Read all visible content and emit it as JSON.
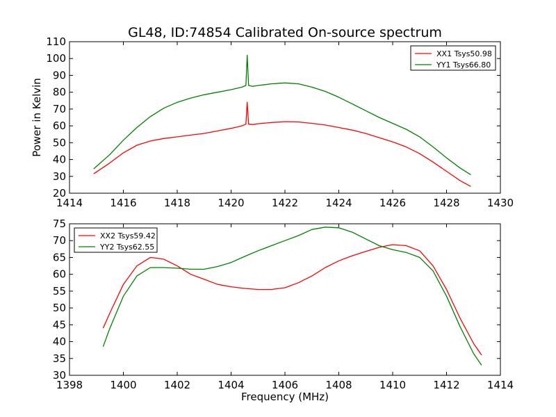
{
  "chart_data": [
    {
      "type": "line",
      "title": "GL48, ID:74854 Calibrated On-source spectrum",
      "xlabel": "",
      "ylabel": "Power in Kelvin",
      "xlim": [
        1414,
        1430
      ],
      "ylim": [
        20,
        110
      ],
      "xticks": [
        1414,
        1416,
        1418,
        1420,
        1422,
        1424,
        1426,
        1428,
        1430
      ],
      "yticks": [
        20,
        30,
        40,
        50,
        60,
        70,
        80,
        90,
        100,
        110
      ],
      "legend_position": "top-right",
      "grid": false,
      "series": [
        {
          "name": "XX1 Tsys50.98",
          "color": "#ff0000",
          "x": [
            1414.9,
            1415.5,
            1416.0,
            1416.5,
            1417.0,
            1417.5,
            1418.0,
            1418.5,
            1419.0,
            1419.5,
            1420.0,
            1420.4,
            1420.55,
            1420.6,
            1420.65,
            1420.8,
            1421.0,
            1421.5,
            1422.0,
            1422.5,
            1423.0,
            1423.5,
            1424.0,
            1424.5,
            1425.0,
            1425.5,
            1426.0,
            1426.5,
            1427.0,
            1427.5,
            1428.0,
            1428.5,
            1428.9
          ],
          "y": [
            31.5,
            38,
            44,
            48.5,
            51,
            52.5,
            53.5,
            54.5,
            55.5,
            57,
            58.5,
            60,
            61,
            74,
            61,
            60.8,
            61.3,
            62,
            62.5,
            62.3,
            61.5,
            60.5,
            59,
            57.5,
            55.5,
            53,
            50.5,
            47.5,
            43.5,
            38.5,
            33,
            27.5,
            24
          ]
        },
        {
          "name": "YY1 Tsys66.80",
          "color": "#008000",
          "x": [
            1414.9,
            1415.5,
            1416.0,
            1416.5,
            1417.0,
            1417.5,
            1418.0,
            1418.5,
            1419.0,
            1419.5,
            1420.0,
            1420.4,
            1420.55,
            1420.6,
            1420.65,
            1420.8,
            1421.0,
            1421.5,
            1422.0,
            1422.5,
            1423.0,
            1423.5,
            1424.0,
            1424.5,
            1425.0,
            1425.5,
            1426.0,
            1426.5,
            1427.0,
            1427.5,
            1428.0,
            1428.5,
            1428.9
          ],
          "y": [
            34.5,
            43,
            51.5,
            59,
            65.5,
            70.5,
            74,
            76.5,
            78.5,
            80,
            81.5,
            83,
            84,
            102,
            84,
            83.5,
            84,
            85,
            85.5,
            85,
            83,
            80.5,
            77,
            73,
            69,
            65,
            61.5,
            58,
            53.5,
            47.5,
            41,
            35,
            31
          ]
        }
      ]
    },
    {
      "type": "line",
      "title": "",
      "xlabel": "Frequency (MHz)",
      "ylabel": "",
      "xlim": [
        1398,
        1414
      ],
      "ylim": [
        30,
        75
      ],
      "xticks": [
        1398,
        1400,
        1402,
        1404,
        1406,
        1408,
        1410,
        1412,
        1414
      ],
      "yticks": [
        30,
        35,
        40,
        45,
        50,
        55,
        60,
        65,
        70,
        75
      ],
      "legend_position": "top-left",
      "grid": false,
      "series": [
        {
          "name": "XX2 Tsys59.42",
          "color": "#ff0000",
          "x": [
            1399.25,
            1399.5,
            1400.0,
            1400.5,
            1401.0,
            1401.5,
            1402.0,
            1402.5,
            1403.0,
            1403.5,
            1404.0,
            1404.5,
            1405.0,
            1405.5,
            1406.0,
            1406.5,
            1407.0,
            1407.5,
            1408.0,
            1408.5,
            1409.0,
            1409.5,
            1410.0,
            1410.5,
            1411.0,
            1411.5,
            1412.0,
            1412.5,
            1413.0,
            1413.3
          ],
          "y": [
            44,
            48.5,
            57,
            62.5,
            65,
            64.5,
            62.5,
            60,
            58.5,
            57,
            56.3,
            55.8,
            55.5,
            55.5,
            56,
            57.5,
            59.5,
            62,
            64,
            65.5,
            66.8,
            68,
            68.8,
            68.5,
            67,
            62.5,
            55.5,
            47,
            39.5,
            36
          ]
        },
        {
          "name": "YY2 Tsys62.55",
          "color": "#008000",
          "x": [
            1399.25,
            1399.5,
            1400.0,
            1400.5,
            1401.0,
            1401.5,
            1402.0,
            1402.5,
            1403.0,
            1403.5,
            1404.0,
            1404.5,
            1405.0,
            1405.5,
            1406.0,
            1406.5,
            1407.0,
            1407.5,
            1408.0,
            1408.5,
            1409.0,
            1409.5,
            1410.0,
            1410.5,
            1411.0,
            1411.5,
            1412.0,
            1412.5,
            1413.0,
            1413.3
          ],
          "y": [
            38.5,
            44,
            53.5,
            59.5,
            62,
            62,
            61.8,
            61.5,
            61.5,
            62.3,
            63.5,
            65.3,
            67,
            68.5,
            70,
            71.5,
            73.3,
            74,
            73.8,
            72.5,
            70.5,
            68.5,
            67.3,
            66.5,
            65,
            61,
            53.5,
            44.5,
            36.5,
            33
          ]
        }
      ]
    }
  ]
}
